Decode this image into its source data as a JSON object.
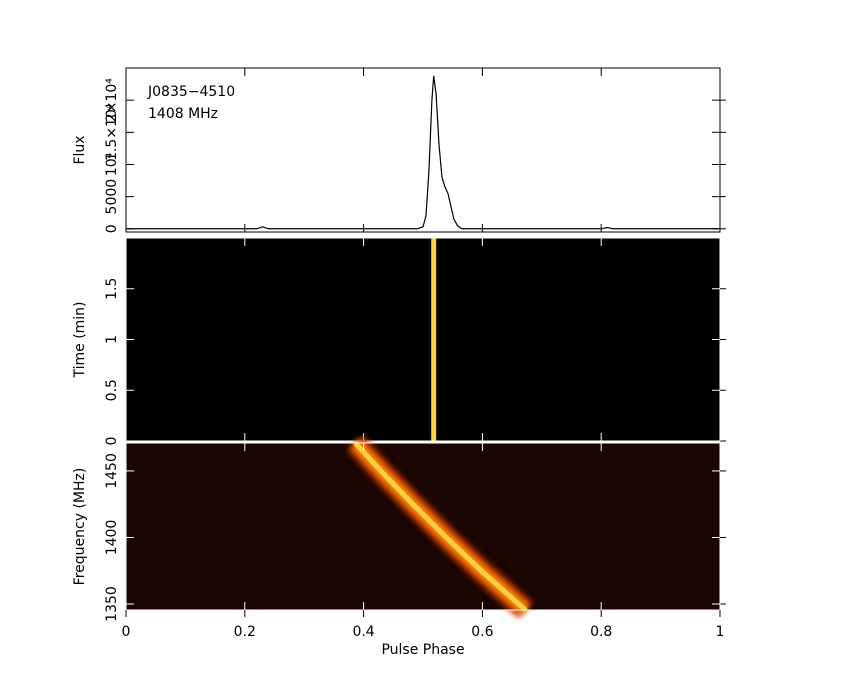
{
  "chart_data": [
    {
      "type": "line",
      "ylabel": "Flux",
      "annotations": [
        "J0835−4510",
        "1408 MHz"
      ],
      "x": [
        0,
        0.22,
        0.23,
        0.24,
        0.49,
        0.5,
        0.505,
        0.51,
        0.515,
        0.518,
        0.522,
        0.527,
        0.532,
        0.537,
        0.542,
        0.547,
        0.552,
        0.558,
        0.565,
        0.8,
        0.81,
        0.82,
        1
      ],
      "values": [
        0,
        0,
        300,
        0,
        0,
        300,
        2000,
        9000,
        20000,
        23800,
        21000,
        13000,
        8000,
        6500,
        5500,
        3500,
        1500,
        500,
        0,
        0,
        200,
        0,
        0
      ],
      "color": "#000000",
      "xlim": [
        0,
        1
      ],
      "ylim": [
        -500,
        25000
      ],
      "yticks": [
        0,
        5000,
        {
          "value": 10000,
          "label": "10⁴"
        },
        {
          "value": 15000,
          "label": "1.5×10⁴"
        },
        {
          "value": 20000,
          "label": "2×10⁴"
        }
      ]
    },
    {
      "type": "dynamic",
      "ylabel": "Time (min)",
      "x": [
        0.518,
        0.518
      ],
      "values": [
        0,
        2
      ],
      "color": "#ffd040",
      "background": "#000000",
      "xlim": [
        0,
        1
      ],
      "ylim": [
        0,
        2
      ],
      "yticks": [
        0,
        0.5,
        1,
        1.5
      ]
    },
    {
      "type": "dynamic",
      "ylabel": "Frequency (MHz)",
      "xlabel": "Pulse Phase",
      "x": [
        0.386,
        0.429,
        0.483,
        0.539,
        0.598,
        0.661,
        0.673
      ],
      "values": [
        1471,
        1450,
        1425,
        1400,
        1375,
        1350,
        1345.5
      ],
      "color": "#ffd040",
      "background": "#1a0500",
      "xlim": [
        0,
        1
      ],
      "ylim": [
        1345.5,
        1471
      ],
      "yticks": [
        1350,
        1400,
        1450
      ],
      "xticks": [
        0,
        0.2,
        0.4,
        0.6,
        0.8,
        1
      ]
    }
  ]
}
